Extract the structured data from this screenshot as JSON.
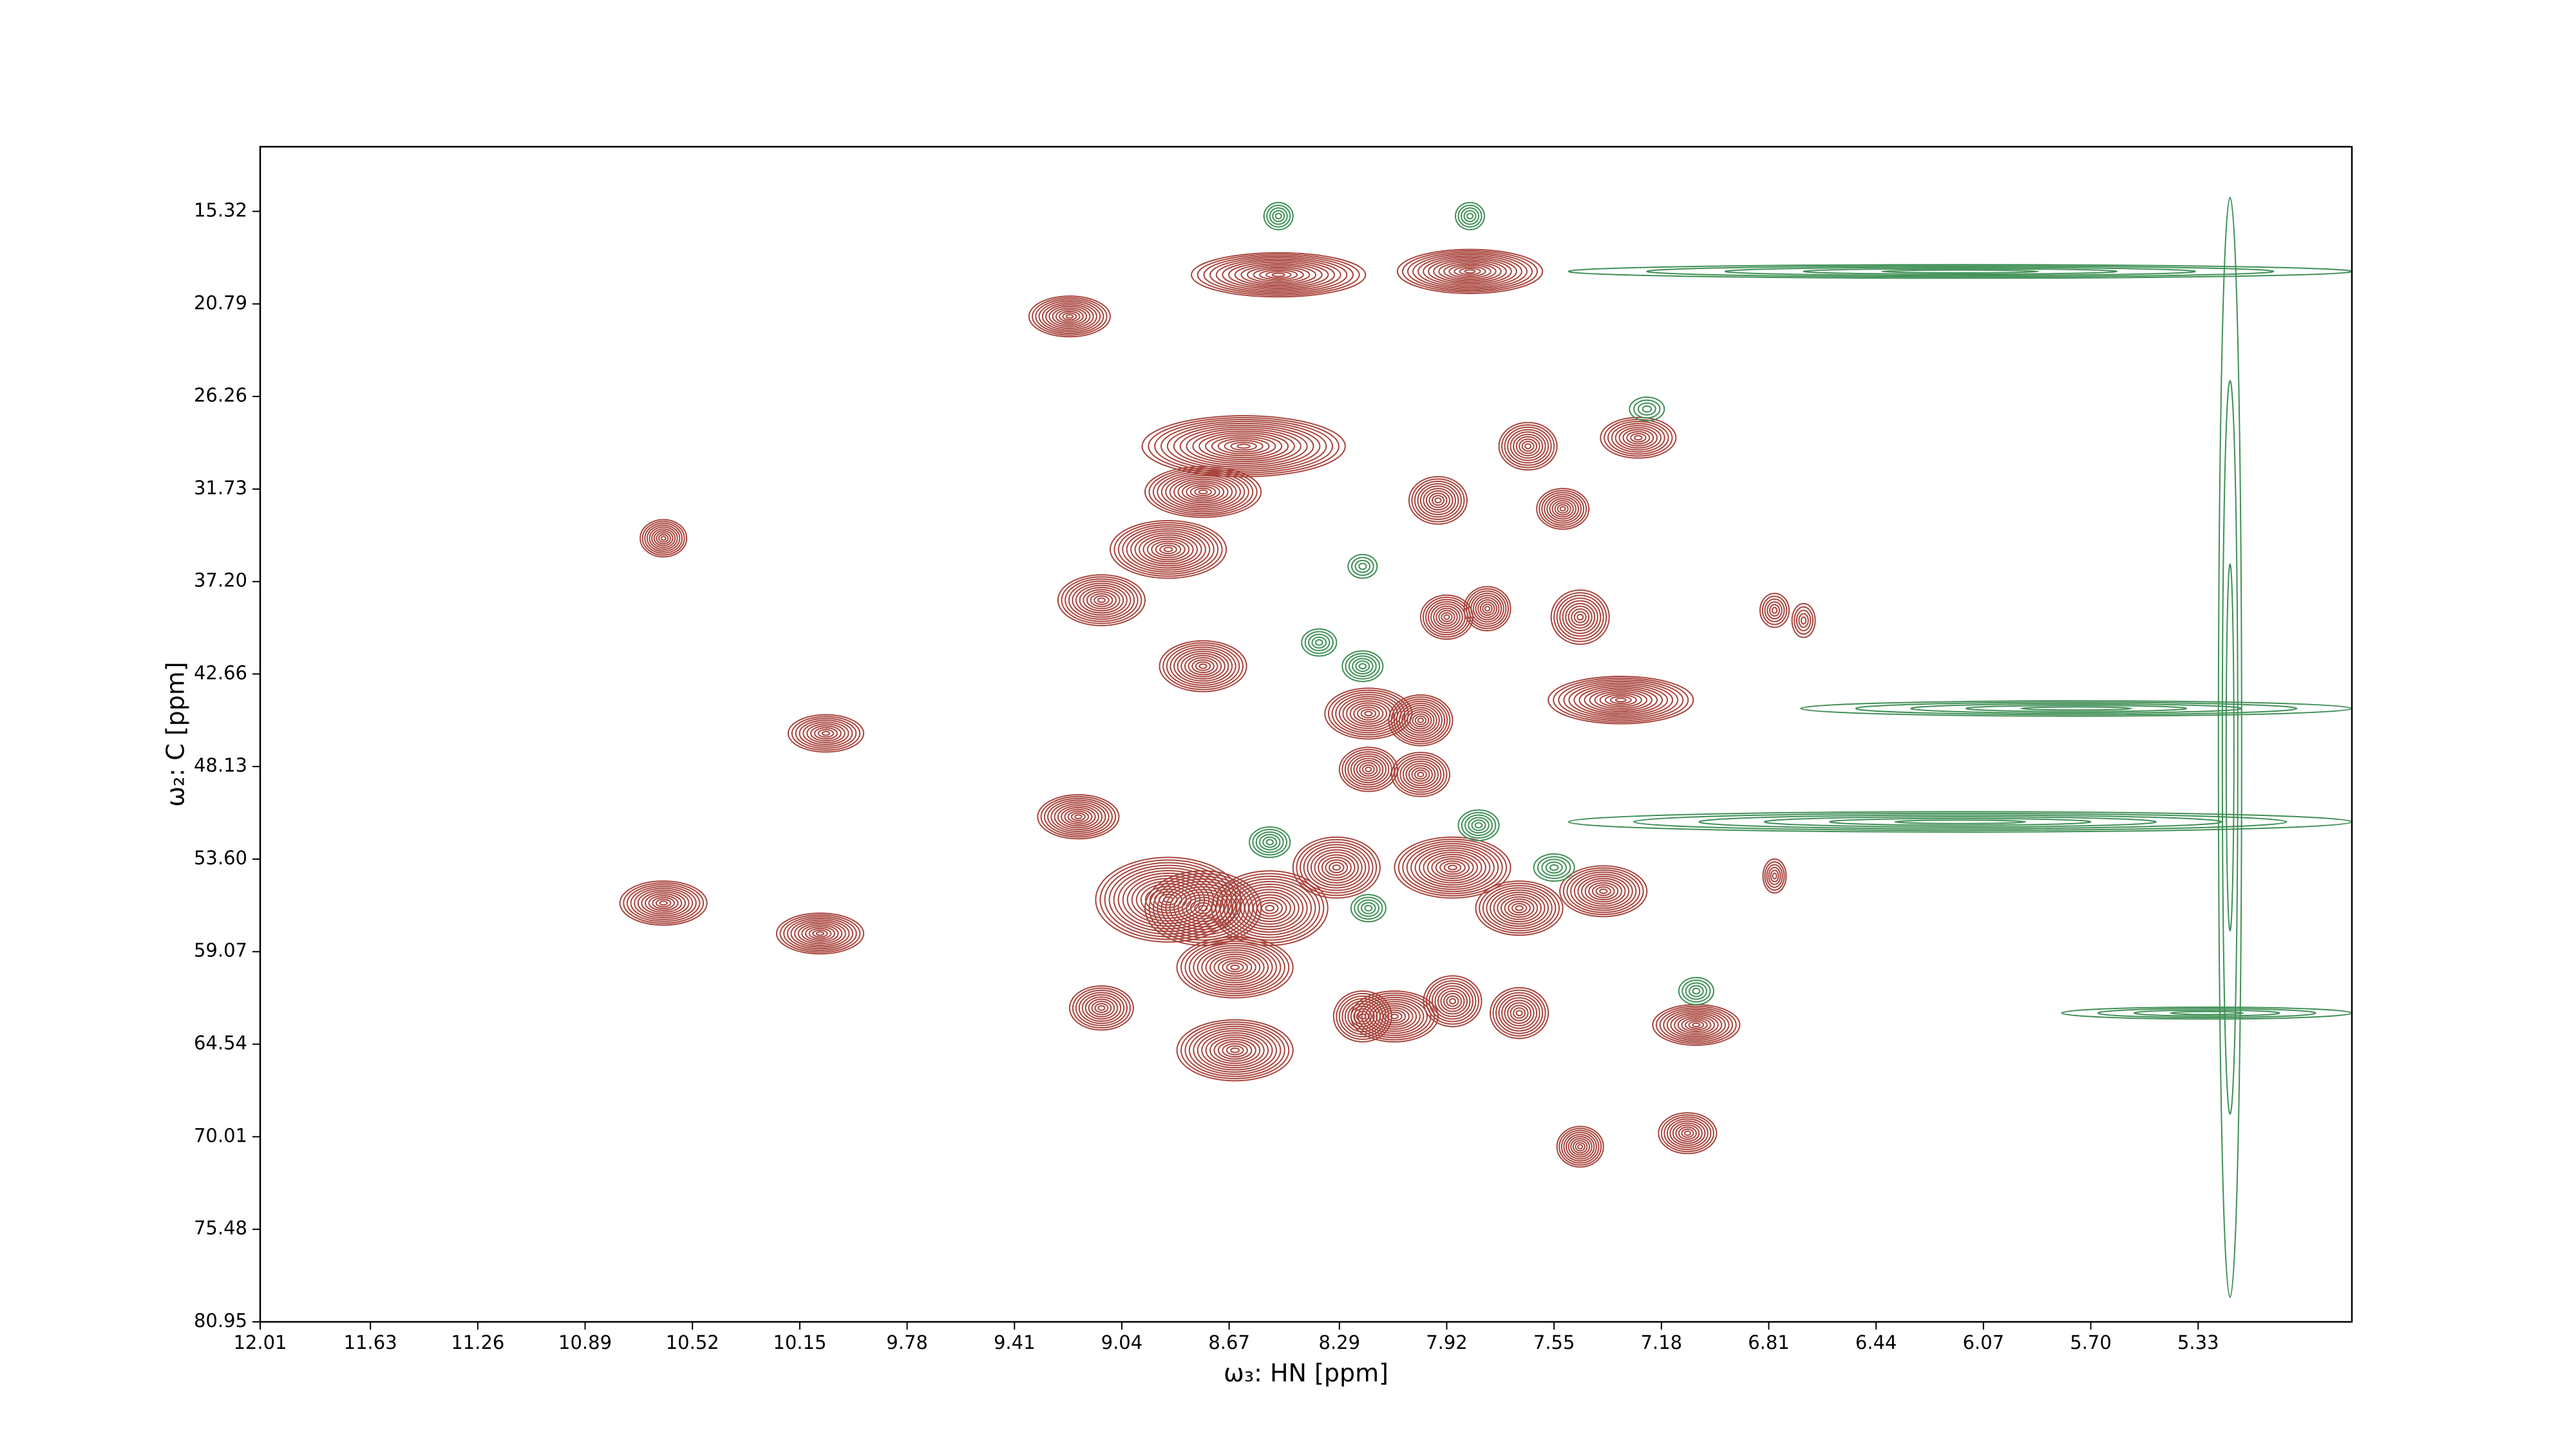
{
  "chart_data": {
    "type": "contour",
    "xlabel": "ω₃: HN [ppm]",
    "ylabel": "ω₂: C [ppm]",
    "xlim": [
      12.01,
      4.8
    ],
    "ylim": [
      80.95,
      11.5
    ],
    "xticks": [
      12.01,
      11.63,
      11.26,
      10.89,
      10.52,
      10.15,
      9.78,
      9.41,
      9.04,
      8.67,
      8.29,
      7.92,
      7.55,
      7.18,
      6.81,
      6.44,
      6.07,
      {
        "value": 5.7,
        "label": "5.70"
      },
      5.33
    ],
    "yticks": [
      15.32,
      20.79,
      26.26,
      31.73,
      {
        "value": 37.2,
        "label": "37.20"
      },
      42.66,
      48.13,
      {
        "value": 53.6,
        "label": "53.60"
      },
      59.07,
      64.54,
      70.01,
      75.48,
      80.95
    ],
    "series": [
      {
        "color": "#a8443c",
        "x": [
          9.22,
          8.5,
          7.84,
          10.62,
          10.06,
          10.62,
          10.08,
          9.19,
          9.11,
          7.06,
          7.09,
          7.46,
          7.26,
          7.64,
          7.52,
          8.62,
          8.76,
          8.88,
          9.11,
          8.76,
          7.95,
          7.92,
          7.78,
          7.46,
          8.19,
          8.01,
          7.32,
          8.19,
          8.01,
          8.88,
          8.76,
          8.53,
          8.3,
          7.9,
          7.67,
          7.38,
          8.65,
          8.1,
          7.9,
          7.67,
          8.65,
          6.79,
          6.79,
          8.21,
          6.69
        ],
        "y": [
          21.53,
          19.07,
          18.87,
          34.64,
          46.17,
          56.2,
          58.0,
          51.1,
          62.4,
          63.4,
          69.8,
          70.6,
          28.7,
          29.2,
          32.9,
          29.2,
          31.9,
          35.3,
          38.3,
          42.2,
          32.4,
          39.3,
          38.8,
          39.3,
          45.0,
          45.4,
          44.2,
          48.3,
          48.6,
          56.0,
          56.5,
          56.5,
          54.1,
          54.1,
          56.5,
          55.5,
          60.0,
          62.9,
          62.0,
          62.7,
          64.9,
          38.9,
          54.6,
          62.9,
          39.5
        ],
        "width": [
          0.28,
          0.6,
          0.5,
          0.16,
          0.26,
          0.3,
          0.3,
          0.28,
          0.22,
          0.3,
          0.2,
          0.16,
          0.26,
          0.2,
          0.18,
          0.7,
          0.4,
          0.4,
          0.3,
          0.3,
          0.2,
          0.18,
          0.16,
          0.2,
          0.3,
          0.22,
          0.5,
          0.2,
          0.2,
          0.5,
          0.4,
          0.4,
          0.3,
          0.4,
          0.3,
          0.3,
          0.4,
          0.3,
          0.2,
          0.2,
          0.4,
          0.1,
          0.08,
          0.2,
          0.08
        ],
        "height": [
          2.4,
          2.6,
          2.6,
          2.2,
          2.2,
          2.6,
          2.4,
          2.6,
          2.6,
          2.4,
          2.4,
          2.4,
          2.4,
          2.8,
          2.4,
          3.6,
          3.0,
          3.4,
          3.0,
          3.0,
          2.8,
          2.6,
          2.6,
          3.2,
          3.0,
          3.0,
          2.8,
          2.6,
          2.6,
          5.0,
          4.4,
          4.4,
          3.6,
          3.6,
          3.2,
          3.0,
          3.6,
          3.0,
          3.0,
          3.0,
          3.6,
          2.0,
          2.0,
          3.0,
          2.0
        ],
        "levels": [
          12,
          14,
          14,
          10,
          10,
          12,
          12,
          12,
          10,
          12,
          10,
          10,
          10,
          10,
          10,
          16,
          14,
          14,
          12,
          12,
          10,
          10,
          10,
          10,
          12,
          12,
          14,
          10,
          10,
          16,
          14,
          14,
          12,
          14,
          12,
          12,
          14,
          12,
          10,
          10,
          14,
          6,
          6,
          10,
          5
        ]
      },
      {
        "color": "#3f8f55",
        "x": [
          8.5,
          7.84,
          7.23,
          8.21,
          8.53,
          7.81,
          8.19,
          7.55,
          7.06,
          8.36,
          8.21,
          6.15,
          5.75,
          6.15,
          5.3,
          5.22
        ],
        "y": [
          15.6,
          15.6,
          27.0,
          42.2,
          52.6,
          51.6,
          56.5,
          54.1,
          61.4,
          40.8,
          36.3,
          18.87,
          44.7,
          51.4,
          62.7,
          47.0
        ],
        "width": [
          0.1,
          0.1,
          0.12,
          0.14,
          0.14,
          0.14,
          0.12,
          0.14,
          0.12,
          0.12,
          0.1,
          2.7,
          1.9,
          2.7,
          1.0,
          0.08
        ],
        "height": [
          1.6,
          1.6,
          1.4,
          1.8,
          1.8,
          1.8,
          1.6,
          1.6,
          1.6,
          1.6,
          1.4,
          0.8,
          0.9,
          1.2,
          0.7,
          65
        ],
        "levels": [
          5,
          5,
          4,
          6,
          6,
          6,
          5,
          5,
          5,
          5,
          4,
          5,
          5,
          6,
          4,
          3
        ]
      }
    ]
  }
}
